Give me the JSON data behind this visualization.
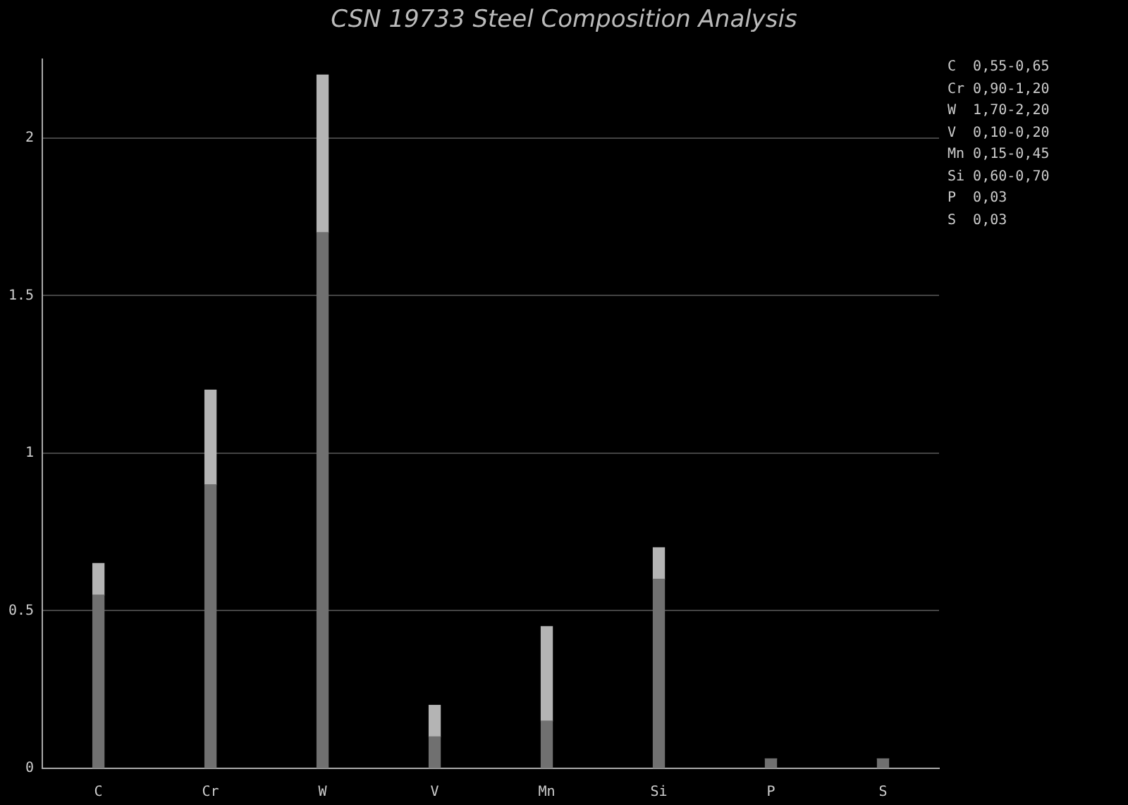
{
  "chart_data": {
    "type": "bar",
    "title": "CSN 19733 Steel Composition Analysis",
    "categories": [
      "C",
      "Cr",
      "W",
      "V",
      "Mn",
      "Si",
      "P",
      "S"
    ],
    "stacked": true,
    "series": [
      {
        "color": "#707070",
        "values": [
          0.55,
          0.9,
          1.7,
          0.1,
          0.15,
          0.6,
          0.03,
          0.03
        ]
      },
      {
        "color": "#b4b4b4",
        "values": [
          0.1,
          0.3,
          0.5,
          0.1,
          0.3,
          0.1,
          0,
          0
        ]
      }
    ],
    "ylim": [
      0,
      2.25
    ],
    "yticks": [
      0,
      0.5,
      1,
      1.5,
      2
    ],
    "grid": "y",
    "legend": false,
    "annotations": [
      "C  0,55-0,65",
      "Cr 0,90-1,20",
      "W  1,70-2,20",
      "V  0,10-0,20",
      "Mn 0,15-0,45",
      "Si 0,60-0,70",
      "P  0,03",
      "S  0,03"
    ]
  }
}
